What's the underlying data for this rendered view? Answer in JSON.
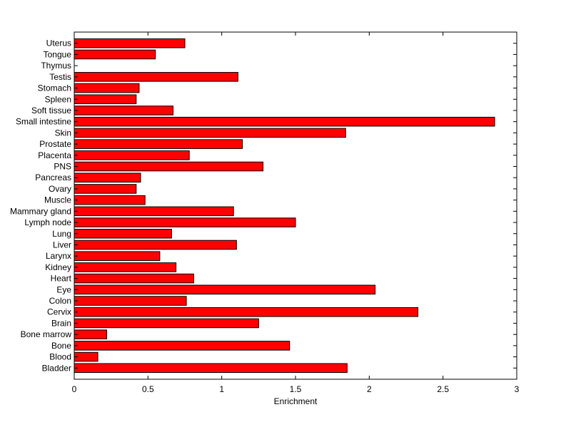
{
  "chart_data": {
    "type": "bar",
    "orientation": "horizontal",
    "title": "",
    "xlabel": "Enrichment",
    "ylabel": "",
    "xlim": [
      0,
      3
    ],
    "xticks": [
      0,
      0.5,
      1,
      1.5,
      2,
      2.5,
      3
    ],
    "xtick_labels": [
      "0",
      "0.5",
      "1",
      "1.5",
      "2",
      "2.5",
      "3"
    ],
    "grid": false,
    "bar_color": "#ff0000",
    "bar_edge_color": "#000000",
    "categories": [
      "Uterus",
      "Tongue",
      "Thymus",
      "Testis",
      "Stomach",
      "Spleen",
      "Soft tissue",
      "Small intestine",
      "Skin",
      "Prostate",
      "Placenta",
      "PNS",
      "Pancreas",
      "Ovary",
      "Muscle",
      "Mammary gland",
      "Lymph node",
      "Lung",
      "Liver",
      "Larynx",
      "Kidney",
      "Heart",
      "Eye",
      "Colon",
      "Cervix",
      "Brain",
      "Bone marrow",
      "Bone",
      "Blood",
      "Bladder"
    ],
    "values": [
      0.75,
      0.55,
      0.0,
      1.11,
      0.44,
      0.42,
      0.67,
      2.85,
      1.84,
      1.14,
      0.78,
      1.28,
      0.45,
      0.42,
      0.48,
      1.08,
      1.5,
      0.66,
      1.1,
      0.58,
      0.69,
      0.81,
      2.04,
      0.76,
      2.33,
      1.25,
      0.22,
      1.46,
      0.16,
      1.85
    ]
  }
}
